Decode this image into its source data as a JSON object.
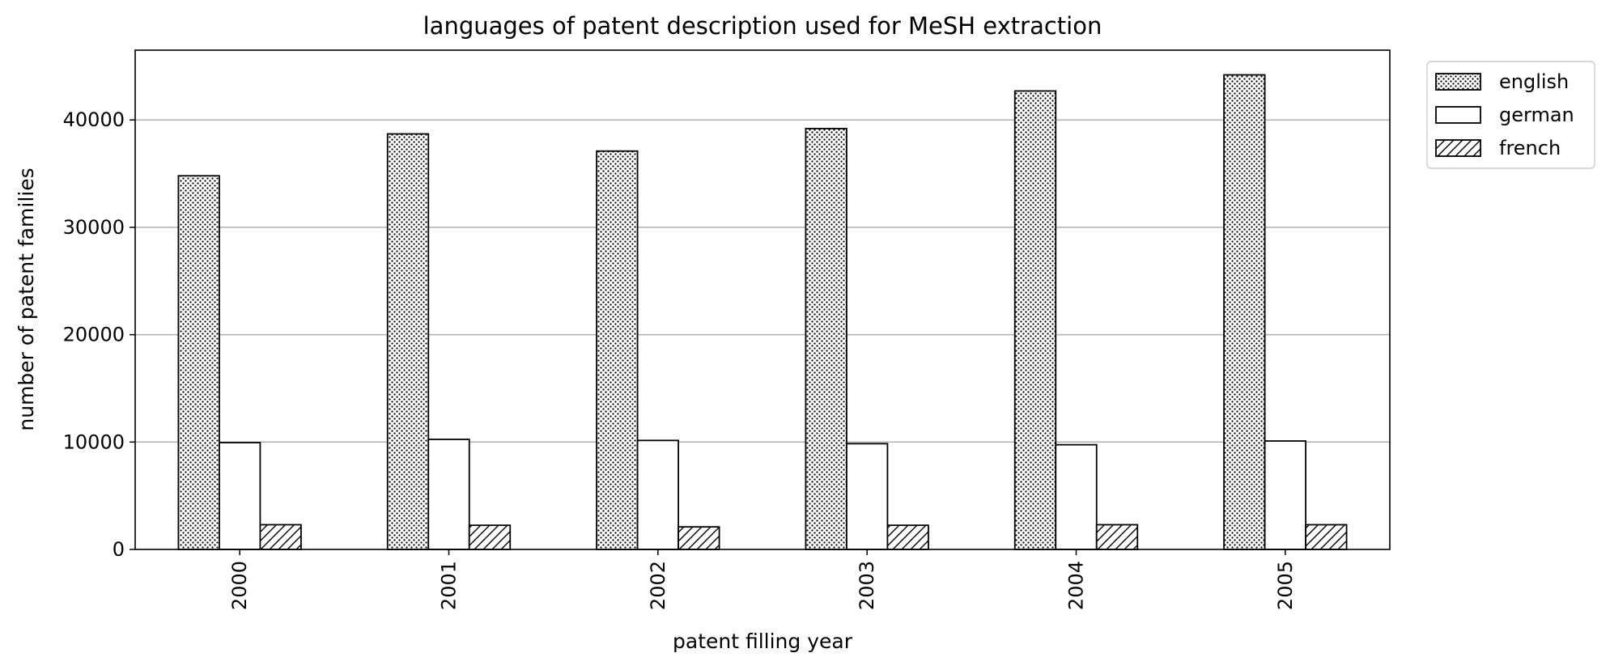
{
  "chart_data": {
    "type": "bar",
    "title": "languages of patent description used for MeSH extraction",
    "xlabel": "patent filling year",
    "ylabel": "number of patent families",
    "categories": [
      "2000",
      "2001",
      "2002",
      "2003",
      "2004",
      "2005"
    ],
    "series": [
      {
        "name": "english",
        "pattern": "dots",
        "values": [
          34800,
          38700,
          37100,
          39200,
          42700,
          44200
        ]
      },
      {
        "name": "german",
        "pattern": "none",
        "values": [
          9950,
          10250,
          10150,
          9850,
          9750,
          10100
        ]
      },
      {
        "name": "french",
        "pattern": "hatch",
        "values": [
          2300,
          2250,
          2100,
          2250,
          2300,
          2300
        ]
      }
    ],
    "ylim": [
      0,
      46500
    ],
    "yticks": [
      "0",
      "10000",
      "20000",
      "30000",
      "40000"
    ],
    "grid": "y",
    "legend_position": "outside top-right",
    "colors": {
      "edge": "#000000",
      "fill": "#ffffff",
      "grid": "#b0b0b0"
    }
  }
}
